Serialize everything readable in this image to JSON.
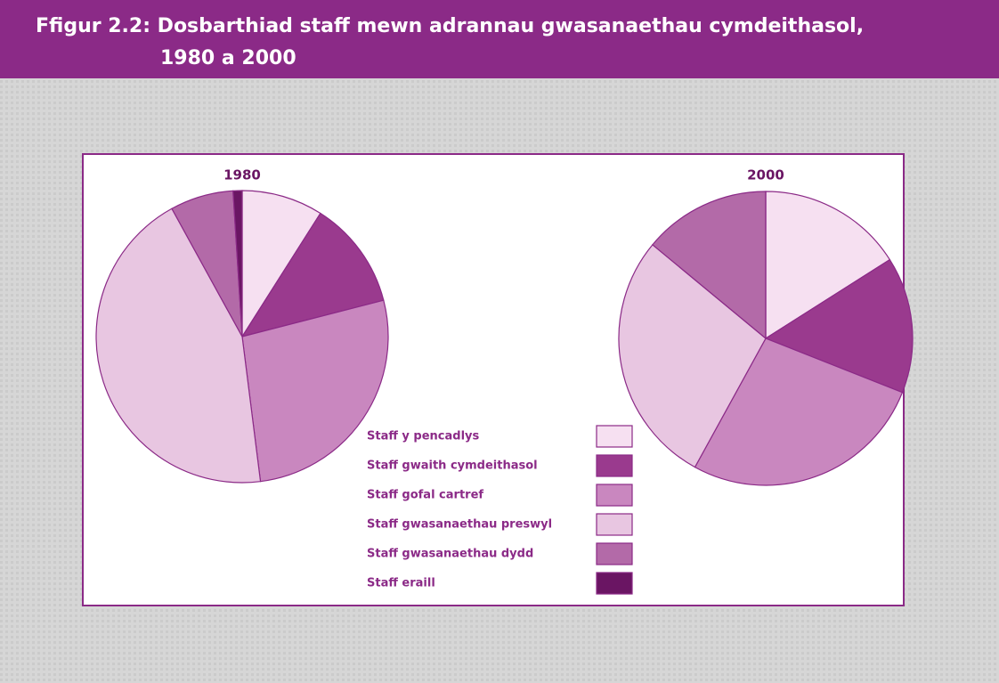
{
  "title": [
    "Ffigur 2.2: Dosbarthiad staff mewn adrannau gwasanaethau cymdeithasol,",
    "1980 a 2000"
  ],
  "legend": {
    "labels": [
      "Staff y pencadlys",
      "Staff gwaith cymdeithasol",
      "Staff gofal cartref",
      "Staff gwasanaethau preswyl",
      "Staff gwasanaethau dydd",
      "Staff eraill"
    ],
    "colors": [
      "#f6e0f1",
      "#9a3a8e",
      "#c987bf",
      "#e8c6e1",
      "#b36aa8",
      "#6a1563"
    ]
  },
  "chart_data": [
    {
      "type": "pie",
      "title": "1980",
      "values": [
        9,
        12,
        27,
        44,
        7,
        1
      ]
    },
    {
      "type": "pie",
      "title": "2000",
      "values": [
        16,
        15,
        27,
        28,
        14,
        0
      ]
    }
  ]
}
